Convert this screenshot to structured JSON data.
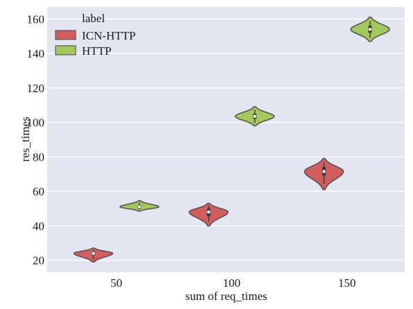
{
  "chart_data": {
    "type": "violin",
    "xlabel": "sum of req_times",
    "ylabel": "res_times",
    "x_ticks": [
      50,
      100,
      150
    ],
    "y_ticks": [
      20,
      40,
      60,
      80,
      100,
      120,
      140,
      160
    ],
    "xlim": [
      20,
      175
    ],
    "ylim": [
      13,
      167
    ],
    "grid": true,
    "legend": {
      "title": "label",
      "position": "top-left",
      "entries": [
        {
          "name": "ICN-HTTP",
          "color": "#d35c5c"
        },
        {
          "name": "HTTP",
          "color": "#a3c95a"
        }
      ]
    },
    "series": [
      {
        "name": "ICN-HTTP",
        "color": "#d35c5c",
        "violins": [
          {
            "x": 40,
            "median": 24,
            "q1": 23,
            "q3": 25,
            "min": 19,
            "max": 27
          },
          {
            "x": 90,
            "median": 48,
            "q1": 45.5,
            "q3": 50,
            "min": 40,
            "max": 53
          },
          {
            "x": 140,
            "median": 71.5,
            "q1": 69,
            "q3": 74,
            "min": 61,
            "max": 79
          }
        ]
      },
      {
        "name": "HTTP",
        "color": "#a3c95a",
        "violins": [
          {
            "x": 60,
            "median": 51,
            "q1": 50,
            "q3": 52,
            "min": 48.5,
            "max": 54.5
          },
          {
            "x": 110,
            "median": 103.5,
            "q1": 102,
            "q3": 105,
            "min": 98,
            "max": 109
          },
          {
            "x": 160,
            "median": 154,
            "q1": 152,
            "q3": 156,
            "min": 147,
            "max": 161
          }
        ]
      }
    ]
  }
}
